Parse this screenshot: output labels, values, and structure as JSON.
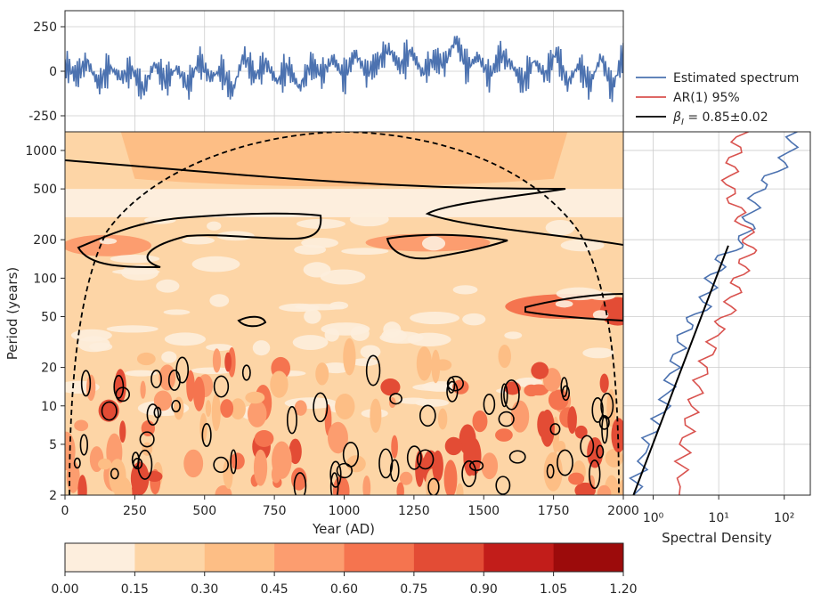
{
  "chart_data": [
    {
      "type": "line",
      "panel": "time-series",
      "x_range": [
        0,
        2000
      ],
      "ylim": [
        -340,
        340
      ],
      "yticks": [
        250,
        0,
        -250
      ],
      "grid": true,
      "series": [
        {
          "color": "#4c72b0",
          "x": [
            0,
            40,
            80,
            120,
            160,
            200,
            240,
            280,
            320,
            360,
            400,
            440,
            480,
            520,
            560,
            600,
            640,
            680,
            720,
            760,
            800,
            840,
            880,
            920,
            960,
            1000,
            1040,
            1080,
            1120,
            1160,
            1200,
            1240,
            1280,
            1320,
            1360,
            1400,
            1440,
            1480,
            1520,
            1560,
            1600,
            1640,
            1680,
            1720,
            1760,
            1800,
            1840,
            1880,
            1920,
            1960,
            2000
          ],
          "y": [
            60,
            -40,
            90,
            -120,
            40,
            -60,
            20,
            -180,
            70,
            -90,
            30,
            -140,
            100,
            -60,
            10,
            -190,
            150,
            -50,
            80,
            -100,
            40,
            -160,
            60,
            -30,
            120,
            -60,
            170,
            -20,
            80,
            210,
            40,
            190,
            -20,
            110,
            70,
            300,
            30,
            140,
            -60,
            160,
            60,
            -110,
            100,
            -40,
            180,
            -120,
            60,
            -130,
            140,
            -170,
            160
          ]
        }
      ]
    },
    {
      "type": "heatmap",
      "panel": "wavelet-scalogram",
      "xlabel": "Year (AD)",
      "ylabel": "Period (years)",
      "xlim": [
        0,
        2000
      ],
      "xticks": [
        "0",
        "250",
        "500",
        "750",
        "1000",
        "1250",
        "1500",
        "1750",
        "2000"
      ],
      "ylim": [
        2,
        1400
      ],
      "y_scale": "log",
      "yticks": [
        "1000",
        "500",
        "200",
        "100",
        "50",
        "20",
        "10",
        "5",
        "2"
      ],
      "cone_of_influence": "dashed black",
      "significance_contours": "solid black",
      "colormap": "OrRd"
    },
    {
      "type": "line",
      "panel": "spectral-density",
      "xlabel": "Spectral Density",
      "x_scale": "log",
      "xticks": [
        "10⁰",
        "10¹",
        "10²"
      ],
      "y_shared_with": "wavelet-scalogram",
      "grid": true,
      "series": [
        {
          "name": "Estimated spectrum",
          "color": "#4c72b0",
          "density": [
            150,
            100,
            40,
            30,
            25,
            12,
            8,
            6,
            3,
            2,
            1.5,
            0.8,
            0.5
          ],
          "period": [
            1400,
            800,
            500,
            300,
            200,
            150,
            100,
            60,
            40,
            20,
            10,
            5,
            2
          ]
        },
        {
          "name": "AR(1) 95%",
          "color": "#d9534f",
          "density": [
            22,
            16,
            14,
            22,
            30,
            28,
            20,
            15,
            10,
            6,
            4,
            3,
            2.5
          ],
          "period": [
            1400,
            800,
            500,
            300,
            200,
            150,
            100,
            60,
            40,
            20,
            10,
            5,
            2
          ]
        },
        {
          "name": "β_I = 0.85±0.02",
          "color": "#000000",
          "density": [
            14,
            0.5
          ],
          "period": [
            180,
            2
          ]
        }
      ]
    }
  ],
  "legend": {
    "location": "top-right",
    "entries": [
      {
        "label": "Estimated spectrum",
        "color": "#4c72b0"
      },
      {
        "label": "AR(1) 95%",
        "color": "#d9534f"
      },
      {
        "label_prefix": "β",
        "label_sub": "I",
        "label_suffix": " = 0.85±0.02",
        "color": "#000000"
      }
    ]
  },
  "colorbar": {
    "ticks": [
      "0.00",
      "0.15",
      "0.30",
      "0.45",
      "0.60",
      "0.75",
      "0.90",
      "1.05",
      "1.20"
    ],
    "colors": [
      "#fdeedd",
      "#fdd5a6",
      "#fdbe85",
      "#fc9d6f",
      "#f5744f",
      "#e34c35",
      "#c21d1a",
      "#9c0b0b"
    ]
  }
}
